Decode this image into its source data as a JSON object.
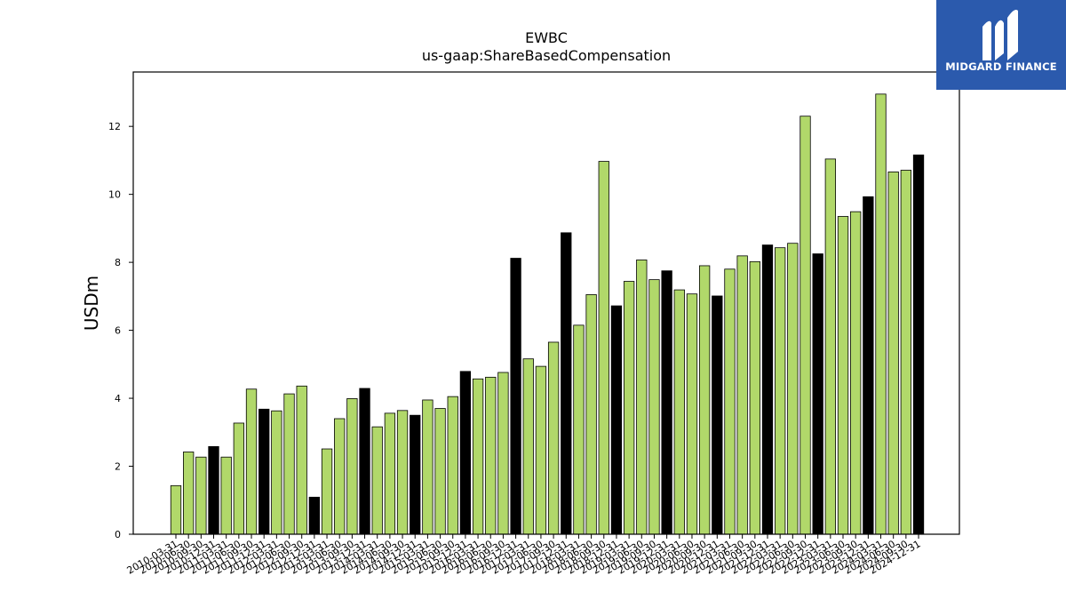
{
  "chart_data": {
    "type": "bar",
    "title": "EWBC",
    "subtitle": "us-gaap:ShareBasedCompensation",
    "xlabel": "",
    "ylabel": "USDm",
    "ylim": [
      0,
      13.6
    ],
    "yticks": [
      "0",
      "2",
      "4",
      "6",
      "8",
      "10",
      "12"
    ],
    "grid": false,
    "colors": {
      "bar": "#b1d86a",
      "annual_bar": "#000000",
      "edge": "#000000"
    },
    "categories": [
      "2010-03-31",
      "2010-06-30",
      "2010-09-30",
      "2010-12-31",
      "2011-03-31",
      "2011-06-30",
      "2011-09-30",
      "2011-12-31",
      "2012-03-31",
      "2012-06-30",
      "2012-09-30",
      "2012-12-31",
      "2013-03-31",
      "2013-06-30",
      "2013-09-30",
      "2013-12-31",
      "2014-03-31",
      "2014-06-30",
      "2014-09-30",
      "2014-12-31",
      "2015-03-31",
      "2015-06-30",
      "2015-09-30",
      "2015-12-31",
      "2016-03-31",
      "2016-06-30",
      "2016-09-30",
      "2016-12-31",
      "2017-03-31",
      "2017-06-30",
      "2017-09-30",
      "2017-12-31",
      "2018-03-31",
      "2018-06-30",
      "2018-09-30",
      "2018-12-31",
      "2019-03-31",
      "2019-06-30",
      "2019-09-30",
      "2019-12-31",
      "2020-03-31",
      "2020-06-30",
      "2020-09-30",
      "2020-12-31",
      "2021-03-31",
      "2021-06-30",
      "2021-09-30",
      "2021-12-31",
      "2022-03-31",
      "2022-06-30",
      "2022-09-30",
      "2022-12-31",
      "2023-03-31",
      "2023-06-30",
      "2023-09-30",
      "2023-12-31",
      "2024-03-31",
      "2024-06-30",
      "2024-09-30",
      "2024-12-31"
    ],
    "values": [
      1.43,
      2.42,
      2.27,
      2.58,
      2.27,
      3.27,
      4.27,
      3.68,
      3.63,
      4.13,
      4.36,
      1.09,
      2.51,
      3.4,
      3.99,
      4.29,
      3.16,
      3.56,
      3.64,
      3.5,
      3.95,
      3.7,
      4.05,
      4.79,
      4.57,
      4.62,
      4.76,
      8.12,
      5.16,
      4.94,
      5.65,
      8.87,
      6.15,
      7.05,
      10.97,
      6.72,
      7.44,
      8.07,
      7.49,
      7.75,
      7.19,
      7.07,
      7.9,
      7.01,
      7.8,
      8.19,
      8.02,
      8.51,
      8.43,
      8.56,
      12.3,
      8.25,
      11.04,
      9.35,
      9.49,
      9.93,
      12.95,
      10.66,
      10.71,
      11.16
    ],
    "annual": [
      false,
      false,
      false,
      true,
      false,
      false,
      false,
      true,
      false,
      false,
      false,
      true,
      false,
      false,
      false,
      true,
      false,
      false,
      false,
      true,
      false,
      false,
      false,
      true,
      false,
      false,
      false,
      true,
      false,
      false,
      false,
      true,
      false,
      false,
      false,
      true,
      false,
      false,
      false,
      true,
      false,
      false,
      false,
      true,
      false,
      false,
      false,
      true,
      false,
      false,
      false,
      true,
      false,
      false,
      false,
      true,
      false,
      false,
      false,
      true
    ]
  },
  "logo": {
    "name": "midgard-logo-icon",
    "text": "MIDGARD FINANCE",
    "color": "#2b5aad"
  }
}
